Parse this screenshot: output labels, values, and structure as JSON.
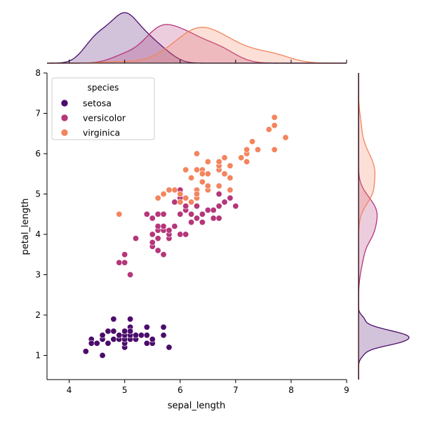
{
  "chart_data": {
    "type": "scatter",
    "title": "",
    "xlabel": "sepal_length",
    "ylabel": "petal_length",
    "xlim": [
      3.6,
      9.0
    ],
    "ylim": [
      0.4,
      8.0
    ],
    "x_ticks": [
      4,
      5,
      6,
      7,
      8,
      9
    ],
    "y_ticks": [
      1,
      2,
      3,
      4,
      5,
      6,
      7,
      8
    ],
    "grid": false,
    "legend": {
      "title": "species",
      "placement": "top-left"
    },
    "marginals": {
      "top": "kde-by-species",
      "right": "kde-by-species"
    },
    "series": [
      {
        "name": "setosa",
        "color": "#4b0c6b",
        "points": [
          [
            4.3,
            1.1
          ],
          [
            4.4,
            1.3
          ],
          [
            4.4,
            1.4
          ],
          [
            4.5,
            1.3
          ],
          [
            4.6,
            1.0
          ],
          [
            4.6,
            1.4
          ],
          [
            4.6,
            1.5
          ],
          [
            4.7,
            1.3
          ],
          [
            4.7,
            1.6
          ],
          [
            4.8,
            1.4
          ],
          [
            4.8,
            1.6
          ],
          [
            4.8,
            1.9
          ],
          [
            4.9,
            1.4
          ],
          [
            4.9,
            1.5
          ],
          [
            5.0,
            1.2
          ],
          [
            5.0,
            1.3
          ],
          [
            5.0,
            1.4
          ],
          [
            5.0,
            1.5
          ],
          [
            5.0,
            1.6
          ],
          [
            5.1,
            1.4
          ],
          [
            5.1,
            1.5
          ],
          [
            5.1,
            1.7
          ],
          [
            5.1,
            1.9
          ],
          [
            5.1,
            1.6
          ],
          [
            5.2,
            1.4
          ],
          [
            5.2,
            1.5
          ],
          [
            5.3,
            1.5
          ],
          [
            5.4,
            1.3
          ],
          [
            5.4,
            1.5
          ],
          [
            5.4,
            1.7
          ],
          [
            5.5,
            1.3
          ],
          [
            5.5,
            1.4
          ],
          [
            5.7,
            1.5
          ],
          [
            5.7,
            1.7
          ],
          [
            5.8,
            1.2
          ],
          [
            4.4,
            1.3
          ],
          [
            4.9,
            1.5
          ],
          [
            5.0,
            1.6
          ],
          [
            4.5,
            1.3
          ],
          [
            5.4,
            1.5
          ]
        ]
      },
      {
        "name": "versicolor",
        "color": "#b5367a",
        "points": [
          [
            4.9,
            3.3
          ],
          [
            5.0,
            3.3
          ],
          [
            5.0,
            3.5
          ],
          [
            5.1,
            3.0
          ],
          [
            5.2,
            3.9
          ],
          [
            5.4,
            4.5
          ],
          [
            5.5,
            3.7
          ],
          [
            5.5,
            3.8
          ],
          [
            5.5,
            4.0
          ],
          [
            5.5,
            4.4
          ],
          [
            5.6,
            3.6
          ],
          [
            5.6,
            3.9
          ],
          [
            5.6,
            4.1
          ],
          [
            5.6,
            4.2
          ],
          [
            5.6,
            4.5
          ],
          [
            5.7,
            3.5
          ],
          [
            5.7,
            4.1
          ],
          [
            5.7,
            4.2
          ],
          [
            5.7,
            4.5
          ],
          [
            5.8,
            3.9
          ],
          [
            5.8,
            4.0
          ],
          [
            5.8,
            4.1
          ],
          [
            5.9,
            4.2
          ],
          [
            5.9,
            4.8
          ],
          [
            6.0,
            4.0
          ],
          [
            6.0,
            4.5
          ],
          [
            6.0,
            5.1
          ],
          [
            6.0,
            4.9
          ],
          [
            6.1,
            4.0
          ],
          [
            6.1,
            4.6
          ],
          [
            6.1,
            4.7
          ],
          [
            6.2,
            4.3
          ],
          [
            6.2,
            4.5
          ],
          [
            6.3,
            4.4
          ],
          [
            6.3,
            4.7
          ],
          [
            6.3,
            4.9
          ],
          [
            6.4,
            4.3
          ],
          [
            6.4,
            4.5
          ],
          [
            6.5,
            4.6
          ],
          [
            6.6,
            4.4
          ],
          [
            6.6,
            4.6
          ],
          [
            6.7,
            4.4
          ],
          [
            6.7,
            4.7
          ],
          [
            6.7,
            5.0
          ],
          [
            6.8,
            4.8
          ],
          [
            6.9,
            4.9
          ],
          [
            7.0,
            4.7
          ],
          [
            5.5,
            4.0
          ],
          [
            6.1,
            4.7
          ],
          [
            5.7,
            4.2
          ]
        ]
      },
      {
        "name": "virginica",
        "color": "#f3855e",
        "points": [
          [
            4.9,
            4.5
          ],
          [
            5.6,
            4.9
          ],
          [
            5.7,
            5.0
          ],
          [
            5.8,
            5.1
          ],
          [
            5.9,
            5.1
          ],
          [
            6.0,
            4.8
          ],
          [
            6.0,
            5.0
          ],
          [
            6.1,
            4.9
          ],
          [
            6.1,
            5.6
          ],
          [
            6.2,
            4.8
          ],
          [
            6.2,
            5.4
          ],
          [
            6.3,
            4.9
          ],
          [
            6.3,
            5.0
          ],
          [
            6.3,
            5.1
          ],
          [
            6.3,
            5.6
          ],
          [
            6.3,
            6.0
          ],
          [
            6.4,
            5.3
          ],
          [
            6.4,
            5.5
          ],
          [
            6.4,
            5.6
          ],
          [
            6.5,
            5.1
          ],
          [
            6.5,
            5.2
          ],
          [
            6.5,
            5.5
          ],
          [
            6.5,
            5.8
          ],
          [
            6.7,
            5.2
          ],
          [
            6.7,
            5.6
          ],
          [
            6.7,
            5.7
          ],
          [
            6.7,
            5.8
          ],
          [
            6.8,
            5.5
          ],
          [
            6.8,
            5.9
          ],
          [
            6.9,
            5.1
          ],
          [
            6.9,
            5.4
          ],
          [
            6.9,
            5.7
          ],
          [
            7.1,
            5.9
          ],
          [
            7.2,
            5.8
          ],
          [
            7.2,
            6.0
          ],
          [
            7.2,
            6.1
          ],
          [
            7.3,
            6.3
          ],
          [
            7.4,
            6.1
          ],
          [
            7.6,
            6.6
          ],
          [
            7.7,
            6.1
          ],
          [
            7.7,
            6.7
          ],
          [
            7.7,
            6.9
          ],
          [
            7.9,
            6.4
          ],
          [
            6.1,
            5.6
          ],
          [
            5.8,
            5.1
          ],
          [
            6.3,
            5.0
          ],
          [
            6.4,
            5.5
          ],
          [
            6.7,
            5.8
          ],
          [
            6.8,
            5.5
          ],
          [
            6.2,
            5.4
          ]
        ]
      }
    ]
  }
}
